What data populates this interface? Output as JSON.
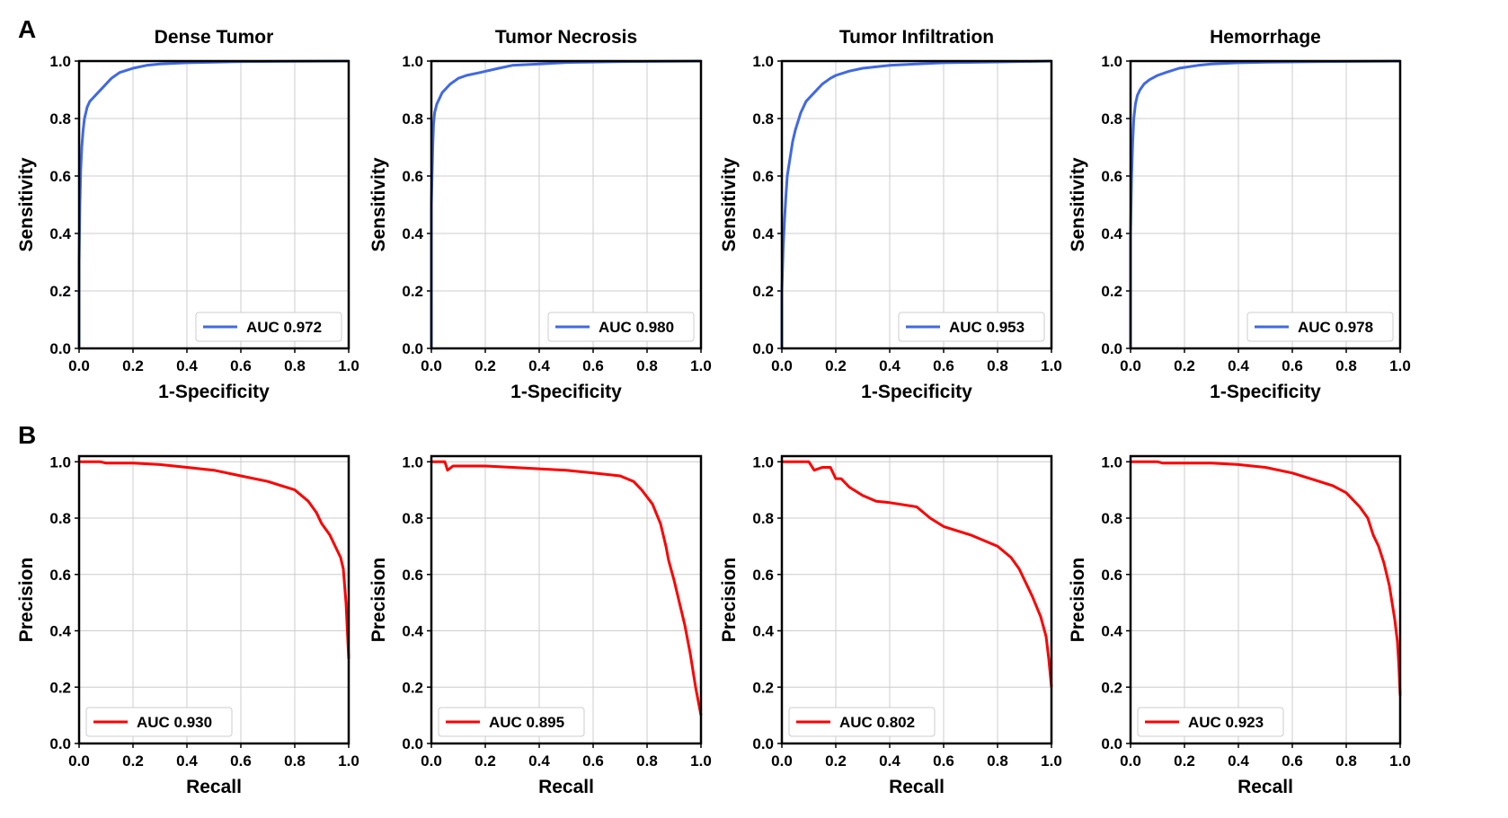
{
  "panel_labels": [
    "A",
    "B"
  ],
  "colors": {
    "roc": "#4169E1",
    "pr": "#FF0000",
    "grid": "#cccccc",
    "axis": "#000000"
  },
  "chart_data": [
    {
      "type": "line",
      "row": "A",
      "title": "Dense Tumor",
      "xlabel": "1-Specificity",
      "ylabel": "Sensitivity",
      "xlim": [
        0,
        1
      ],
      "ylim": [
        0,
        1
      ],
      "grid": true,
      "legend": "bottom-right",
      "xticks": [
        "0.0",
        "0.2",
        "0.4",
        "0.6",
        "0.8",
        "1.0"
      ],
      "yticks": [
        "0.0",
        "0.2",
        "0.4",
        "0.6",
        "0.8",
        "1.0"
      ],
      "series": [
        {
          "name": "AUC 0.972",
          "color": "#4169E1",
          "x": [
            0.0,
            0.0,
            0.003,
            0.006,
            0.01,
            0.015,
            0.02,
            0.03,
            0.04,
            0.05,
            0.07,
            0.09,
            0.12,
            0.15,
            0.2,
            0.25,
            0.3,
            0.4,
            0.5,
            0.6,
            0.8,
            1.0
          ],
          "y": [
            0.0,
            0.3,
            0.5,
            0.62,
            0.7,
            0.76,
            0.8,
            0.84,
            0.86,
            0.87,
            0.89,
            0.91,
            0.94,
            0.96,
            0.975,
            0.985,
            0.99,
            0.994,
            0.996,
            0.998,
            0.999,
            1.0
          ]
        }
      ]
    },
    {
      "type": "line",
      "row": "A",
      "title": "Tumor Necrosis",
      "xlabel": "1-Specificity",
      "ylabel": "Sensitivity",
      "xlim": [
        0,
        1
      ],
      "ylim": [
        0,
        1
      ],
      "grid": true,
      "legend": "bottom-right",
      "xticks": [
        "0.0",
        "0.2",
        "0.4",
        "0.6",
        "0.8",
        "1.0"
      ],
      "yticks": [
        "0.0",
        "0.2",
        "0.4",
        "0.6",
        "0.8",
        "1.0"
      ],
      "series": [
        {
          "name": "AUC 0.980",
          "color": "#4169E1",
          "x": [
            0.0,
            0.0,
            0.005,
            0.008,
            0.012,
            0.02,
            0.03,
            0.04,
            0.05,
            0.07,
            0.1,
            0.13,
            0.18,
            0.25,
            0.3,
            0.4,
            0.5,
            0.7,
            1.0
          ],
          "y": [
            0.0,
            0.5,
            0.7,
            0.78,
            0.82,
            0.85,
            0.87,
            0.89,
            0.9,
            0.92,
            0.94,
            0.95,
            0.96,
            0.975,
            0.985,
            0.99,
            0.995,
            0.998,
            1.0
          ]
        }
      ]
    },
    {
      "type": "line",
      "row": "A",
      "title": "Tumor Infiltration",
      "xlabel": "1-Specificity",
      "ylabel": "Sensitivity",
      "xlim": [
        0,
        1
      ],
      "ylim": [
        0,
        1
      ],
      "grid": true,
      "legend": "bottom-right",
      "xticks": [
        "0.0",
        "0.2",
        "0.4",
        "0.6",
        "0.8",
        "1.0"
      ],
      "yticks": [
        "0.0",
        "0.2",
        "0.4",
        "0.6",
        "0.8",
        "1.0"
      ],
      "series": [
        {
          "name": "AUC 0.953",
          "color": "#4169E1",
          "x": [
            0.0,
            0.0,
            0.005,
            0.01,
            0.015,
            0.02,
            0.03,
            0.04,
            0.05,
            0.07,
            0.09,
            0.12,
            0.15,
            0.18,
            0.2,
            0.25,
            0.3,
            0.4,
            0.5,
            0.6,
            0.8,
            1.0
          ],
          "y": [
            0.0,
            0.2,
            0.35,
            0.45,
            0.53,
            0.6,
            0.66,
            0.72,
            0.76,
            0.82,
            0.86,
            0.89,
            0.92,
            0.94,
            0.95,
            0.965,
            0.975,
            0.985,
            0.99,
            0.994,
            0.997,
            1.0
          ]
        }
      ]
    },
    {
      "type": "line",
      "row": "A",
      "title": "Hemorrhage",
      "xlabel": "1-Specificity",
      "ylabel": "Sensitivity",
      "xlim": [
        0,
        1
      ],
      "ylim": [
        0,
        1
      ],
      "grid": true,
      "legend": "bottom-right",
      "xticks": [
        "0.0",
        "0.2",
        "0.4",
        "0.6",
        "0.8",
        "1.0"
      ],
      "yticks": [
        "0.0",
        "0.2",
        "0.4",
        "0.6",
        "0.8",
        "1.0"
      ],
      "series": [
        {
          "name": "AUC 0.978",
          "color": "#4169E1",
          "x": [
            0.0,
            0.0,
            0.004,
            0.008,
            0.012,
            0.018,
            0.025,
            0.035,
            0.05,
            0.07,
            0.1,
            0.13,
            0.18,
            0.25,
            0.3,
            0.4,
            0.5,
            0.7,
            1.0
          ],
          "y": [
            0.0,
            0.4,
            0.6,
            0.72,
            0.8,
            0.85,
            0.88,
            0.9,
            0.92,
            0.935,
            0.95,
            0.96,
            0.975,
            0.985,
            0.99,
            0.994,
            0.996,
            0.998,
            1.0
          ]
        }
      ]
    },
    {
      "type": "line",
      "row": "B",
      "title": "",
      "xlabel": "Recall",
      "ylabel": "Precision",
      "xlim": [
        0,
        1
      ],
      "ylim": [
        0,
        1.02
      ],
      "grid": true,
      "legend": "bottom-left",
      "xticks": [
        "0.0",
        "0.2",
        "0.4",
        "0.6",
        "0.8",
        "1.0"
      ],
      "yticks": [
        "0.0",
        "0.2",
        "0.4",
        "0.6",
        "0.8",
        "1.0"
      ],
      "series": [
        {
          "name": "AUC 0.930",
          "color": "#FF0000",
          "x": [
            0.0,
            0.08,
            0.1,
            0.2,
            0.3,
            0.4,
            0.5,
            0.6,
            0.7,
            0.75,
            0.8,
            0.85,
            0.88,
            0.9,
            0.93,
            0.95,
            0.97,
            0.98,
            0.99,
            0.995,
            1.0
          ],
          "y": [
            1.0,
            1.0,
            0.995,
            0.995,
            0.99,
            0.98,
            0.97,
            0.95,
            0.93,
            0.915,
            0.9,
            0.86,
            0.82,
            0.78,
            0.74,
            0.7,
            0.66,
            0.62,
            0.5,
            0.4,
            0.3
          ]
        }
      ]
    },
    {
      "type": "line",
      "row": "B",
      "title": "",
      "xlabel": "Recall",
      "ylabel": "Precision",
      "xlim": [
        0,
        1
      ],
      "ylim": [
        0,
        1.02
      ],
      "grid": true,
      "legend": "bottom-left",
      "xticks": [
        "0.0",
        "0.2",
        "0.4",
        "0.6",
        "0.8",
        "1.0"
      ],
      "yticks": [
        "0.0",
        "0.2",
        "0.4",
        "0.6",
        "0.8",
        "1.0"
      ],
      "series": [
        {
          "name": "AUC 0.895",
          "color": "#FF0000",
          "x": [
            0.0,
            0.05,
            0.06,
            0.08,
            0.2,
            0.3,
            0.4,
            0.5,
            0.6,
            0.7,
            0.75,
            0.78,
            0.82,
            0.85,
            0.87,
            0.88,
            0.9,
            0.92,
            0.94,
            0.96,
            0.98,
            1.0
          ],
          "y": [
            1.0,
            1.0,
            0.97,
            0.985,
            0.985,
            0.98,
            0.975,
            0.97,
            0.96,
            0.95,
            0.93,
            0.9,
            0.85,
            0.78,
            0.7,
            0.65,
            0.58,
            0.5,
            0.42,
            0.32,
            0.2,
            0.1
          ]
        }
      ]
    },
    {
      "type": "line",
      "row": "B",
      "title": "",
      "xlabel": "Recall",
      "ylabel": "Precision",
      "xlim": [
        0,
        1
      ],
      "ylim": [
        0,
        1.02
      ],
      "grid": true,
      "legend": "bottom-left",
      "xticks": [
        "0.0",
        "0.2",
        "0.4",
        "0.6",
        "0.8",
        "1.0"
      ],
      "yticks": [
        "0.0",
        "0.2",
        "0.4",
        "0.6",
        "0.8",
        "1.0"
      ],
      "series": [
        {
          "name": "AUC 0.802",
          "color": "#FF0000",
          "x": [
            0.0,
            0.1,
            0.12,
            0.15,
            0.18,
            0.2,
            0.22,
            0.25,
            0.3,
            0.35,
            0.4,
            0.5,
            0.55,
            0.6,
            0.7,
            0.8,
            0.85,
            0.88,
            0.9,
            0.93,
            0.96,
            0.98,
            0.99,
            1.0
          ],
          "y": [
            1.0,
            1.0,
            0.97,
            0.98,
            0.98,
            0.94,
            0.94,
            0.91,
            0.88,
            0.86,
            0.855,
            0.84,
            0.8,
            0.77,
            0.74,
            0.7,
            0.66,
            0.62,
            0.58,
            0.52,
            0.45,
            0.38,
            0.3,
            0.2
          ]
        }
      ]
    },
    {
      "type": "line",
      "row": "B",
      "title": "",
      "xlabel": "Recall",
      "ylabel": "Precision",
      "xlim": [
        0,
        1
      ],
      "ylim": [
        0,
        1.02
      ],
      "grid": true,
      "legend": "bottom-left",
      "xticks": [
        "0.0",
        "0.2",
        "0.4",
        "0.6",
        "0.8",
        "1.0"
      ],
      "yticks": [
        "0.0",
        "0.2",
        "0.4",
        "0.6",
        "0.8",
        "1.0"
      ],
      "series": [
        {
          "name": "AUC 0.923",
          "color": "#FF0000",
          "x": [
            0.0,
            0.1,
            0.12,
            0.3,
            0.4,
            0.5,
            0.6,
            0.7,
            0.75,
            0.8,
            0.85,
            0.88,
            0.9,
            0.92,
            0.94,
            0.96,
            0.97,
            0.98,
            0.99,
            0.995,
            1.0
          ],
          "y": [
            1.0,
            1.0,
            0.995,
            0.995,
            0.99,
            0.98,
            0.96,
            0.93,
            0.915,
            0.89,
            0.84,
            0.8,
            0.74,
            0.7,
            0.64,
            0.56,
            0.5,
            0.44,
            0.36,
            0.28,
            0.17
          ]
        }
      ]
    }
  ]
}
